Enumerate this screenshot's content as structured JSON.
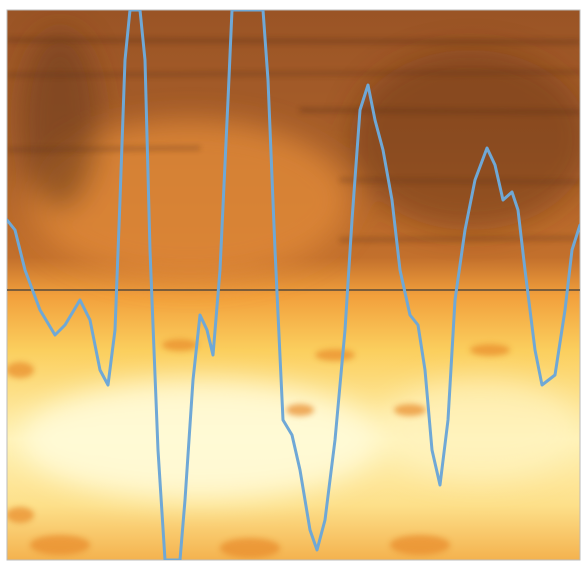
{
  "chart_data": {
    "type": "line",
    "x": [
      0,
      8,
      18,
      33,
      48,
      58,
      73,
      83,
      93,
      101,
      108,
      113,
      118,
      123,
      133,
      138,
      143,
      151,
      158,
      173,
      178,
      186,
      193,
      200,
      206,
      213,
      221,
      225,
      256,
      261,
      268,
      276,
      285,
      293,
      303,
      310,
      318,
      328,
      338,
      345,
      353,
      361,
      368,
      376,
      385,
      393,
      403,
      411,
      418,
      425,
      433,
      441,
      448,
      458,
      468,
      480,
      488,
      496,
      505,
      511,
      518,
      528,
      535,
      548,
      558,
      565,
      573
    ],
    "series": [
      {
        "color": "#6fa8d6",
        "values": [
          0.7,
          0.6,
          0.2,
          -0.2,
          -0.45,
          -0.35,
          -0.1,
          -0.3,
          -0.8,
          -0.95,
          -0.4,
          0.9,
          2.3,
          2.8,
          2.8,
          2.3,
          0.4,
          -1.6,
          -2.7,
          -2.7,
          -2.1,
          -0.9,
          -0.25,
          -0.4,
          -0.65,
          0.2,
          1.9,
          2.8,
          2.8,
          2.1,
          0.4,
          -1.3,
          -1.45,
          -1.8,
          -2.4,
          -2.6,
          -2.3,
          -1.5,
          -0.4,
          0.7,
          1.8,
          2.05,
          1.7,
          1.4,
          0.9,
          0.2,
          -0.25,
          -0.35,
          -0.8,
          -1.6,
          -1.95,
          -1.3,
          -0.1,
          0.6,
          1.1,
          1.42,
          1.25,
          0.9,
          0.98,
          0.8,
          0.2,
          -0.6,
          -0.95,
          -0.85,
          -0.2,
          0.4,
          0.65
        ]
      }
    ],
    "xlim": [
      0,
      573
    ],
    "ylim": [
      -2.7,
      2.8
    ]
  }
}
